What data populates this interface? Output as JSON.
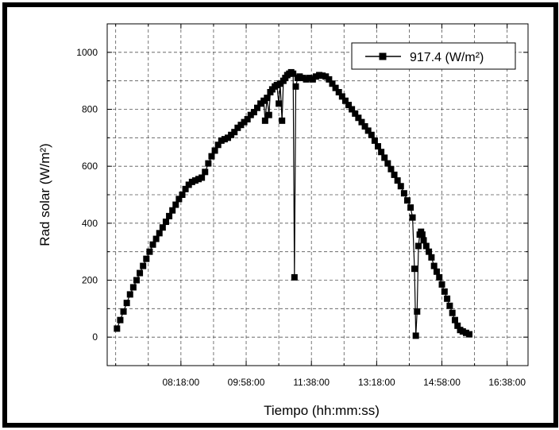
{
  "chart_data": {
    "type": "line",
    "title": "",
    "xlabel": "Tiempo (hh:mm:ss)",
    "ylabel": "Rad solar (W/m²)",
    "x_tick_labels": [
      "08:18:00",
      "09:58:00",
      "11:38:00",
      "13:18:00",
      "14:58:00",
      "16:38:00"
    ],
    "x_tick_minutes": [
      498,
      598,
      698,
      798,
      898,
      998
    ],
    "xlim_minutes": [
      385,
      1030
    ],
    "ylim": [
      -100,
      1100
    ],
    "y_ticks": [
      0,
      200,
      400,
      600,
      800,
      1000
    ],
    "grid": true,
    "legend_position": "top-right",
    "series": [
      {
        "name": "917.4 (W/m²)",
        "color": "#000000",
        "marker": "square",
        "points": [
          [
            400,
            30
          ],
          [
            405,
            60
          ],
          [
            410,
            90
          ],
          [
            415,
            120
          ],
          [
            420,
            150
          ],
          [
            425,
            175
          ],
          [
            430,
            200
          ],
          [
            435,
            225
          ],
          [
            440,
            250
          ],
          [
            445,
            275
          ],
          [
            450,
            300
          ],
          [
            455,
            325
          ],
          [
            460,
            345
          ],
          [
            465,
            365
          ],
          [
            470,
            385
          ],
          [
            475,
            405
          ],
          [
            480,
            425
          ],
          [
            485,
            445
          ],
          [
            490,
            465
          ],
          [
            495,
            485
          ],
          [
            500,
            500
          ],
          [
            505,
            520
          ],
          [
            510,
            535
          ],
          [
            515,
            545
          ],
          [
            520,
            550
          ],
          [
            525,
            555
          ],
          [
            530,
            560
          ],
          [
            535,
            580
          ],
          [
            540,
            610
          ],
          [
            545,
            635
          ],
          [
            550,
            655
          ],
          [
            555,
            675
          ],
          [
            560,
            690
          ],
          [
            565,
            695
          ],
          [
            570,
            700
          ],
          [
            575,
            710
          ],
          [
            580,
            720
          ],
          [
            585,
            735
          ],
          [
            590,
            745
          ],
          [
            595,
            755
          ],
          [
            600,
            765
          ],
          [
            605,
            780
          ],
          [
            610,
            790
          ],
          [
            615,
            805
          ],
          [
            620,
            820
          ],
          [
            625,
            830
          ],
          [
            627,
            760
          ],
          [
            630,
            840
          ],
          [
            633,
            780
          ],
          [
            635,
            860
          ],
          [
            638,
            870
          ],
          [
            642,
            880
          ],
          [
            645,
            885
          ],
          [
            648,
            820
          ],
          [
            650,
            890
          ],
          [
            653,
            760
          ],
          [
            655,
            900
          ],
          [
            658,
            910
          ],
          [
            661,
            920
          ],
          [
            664,
            925
          ],
          [
            667,
            930
          ],
          [
            670,
            925
          ],
          [
            672,
            210
          ],
          [
            674,
            880
          ],
          [
            677,
            910
          ],
          [
            680,
            915
          ],
          [
            685,
            910
          ],
          [
            690,
            905
          ],
          [
            695,
            910
          ],
          [
            700,
            905
          ],
          [
            705,
            915
          ],
          [
            710,
            920
          ],
          [
            715,
            918
          ],
          [
            720,
            915
          ],
          [
            725,
            905
          ],
          [
            730,
            890
          ],
          [
            735,
            875
          ],
          [
            740,
            860
          ],
          [
            745,
            845
          ],
          [
            750,
            830
          ],
          [
            755,
            815
          ],
          [
            760,
            800
          ],
          [
            765,
            785
          ],
          [
            770,
            770
          ],
          [
            775,
            755
          ],
          [
            780,
            740
          ],
          [
            785,
            725
          ],
          [
            790,
            710
          ],
          [
            795,
            690
          ],
          [
            800,
            670
          ],
          [
            805,
            650
          ],
          [
            810,
            630
          ],
          [
            815,
            610
          ],
          [
            820,
            590
          ],
          [
            825,
            570
          ],
          [
            830,
            550
          ],
          [
            835,
            530
          ],
          [
            840,
            505
          ],
          [
            845,
            480
          ],
          [
            850,
            455
          ],
          [
            853,
            420
          ],
          [
            856,
            240
          ],
          [
            858,
            5
          ],
          [
            860,
            90
          ],
          [
            862,
            320
          ],
          [
            864,
            360
          ],
          [
            866,
            370
          ],
          [
            868,
            360
          ],
          [
            870,
            340
          ],
          [
            874,
            320
          ],
          [
            878,
            300
          ],
          [
            882,
            280
          ],
          [
            886,
            250
          ],
          [
            890,
            230
          ],
          [
            894,
            210
          ],
          [
            898,
            185
          ],
          [
            902,
            160
          ],
          [
            906,
            135
          ],
          [
            910,
            110
          ],
          [
            914,
            85
          ],
          [
            918,
            60
          ],
          [
            922,
            40
          ],
          [
            926,
            25
          ],
          [
            930,
            20
          ],
          [
            935,
            15
          ],
          [
            940,
            10
          ]
        ]
      }
    ]
  }
}
